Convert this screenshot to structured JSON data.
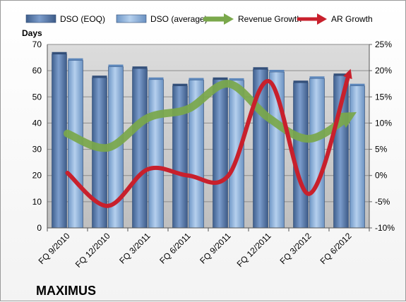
{
  "chart_data": {
    "type": "bar",
    "company_label": "MAXIMUS",
    "categories": [
      "FQ 9/2010",
      "FQ 12/2010",
      "FQ 3/2011",
      "FQ 6/2011",
      "FQ 9/2011",
      "FQ 12/2011",
      "FQ 3/2012",
      "FQ 6/2012"
    ],
    "left_axis": {
      "title": "Days",
      "min": 0,
      "max": 70,
      "step": 10
    },
    "right_axis": {
      "min": -10,
      "max": 25,
      "step": 5,
      "format": "percent"
    },
    "bar_series": [
      {
        "name": "DSO (EOQ)",
        "axis": "left",
        "color": "#5a7fb0",
        "values": [
          66.3,
          57.3,
          60.8,
          54.2,
          56.6,
          60.5,
          55.4,
          58.1
        ]
      },
      {
        "name": "DSO (average)",
        "axis": "left",
        "color": "#8eb3dd",
        "values": [
          63.9,
          61.5,
          56.6,
          56.4,
          56.3,
          59.5,
          57.0,
          54.2
        ]
      }
    ],
    "line_series": [
      {
        "name": "Revenue Growth",
        "axis": "right",
        "color": "#7aa84b",
        "values": [
          8.0,
          5.3,
          11.0,
          12.7,
          17.5,
          11.0,
          7.0,
          11.3
        ]
      },
      {
        "name": "AR Growth",
        "axis": "right",
        "color": "#c8202c",
        "values": [
          0.5,
          -5.8,
          1.2,
          0.0,
          0.0,
          18.0,
          -3.5,
          19.5
        ]
      }
    ],
    "grid": true,
    "legend_position": "top"
  }
}
